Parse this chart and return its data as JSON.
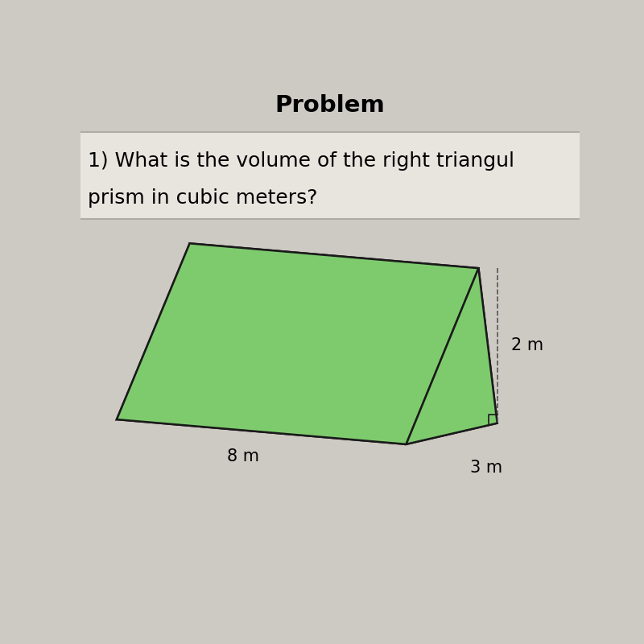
{
  "title": "Problem",
  "question_line1": "1) What is the volume of the right triangul",
  "question_line2": "prism in cubic meters?",
  "bg_color": "#cdc9c3",
  "header_bg": "#cdc9c3",
  "question_bg": "#e8e4de",
  "prism_face_color": "#7ecb6e",
  "prism_edge_color": "#1a1a1a",
  "label_8m": "8 m",
  "label_2m": "2 m",
  "label_3m": "3 m",
  "title_fontsize": 21,
  "question_fontsize": 18,
  "label_fontsize": 15
}
